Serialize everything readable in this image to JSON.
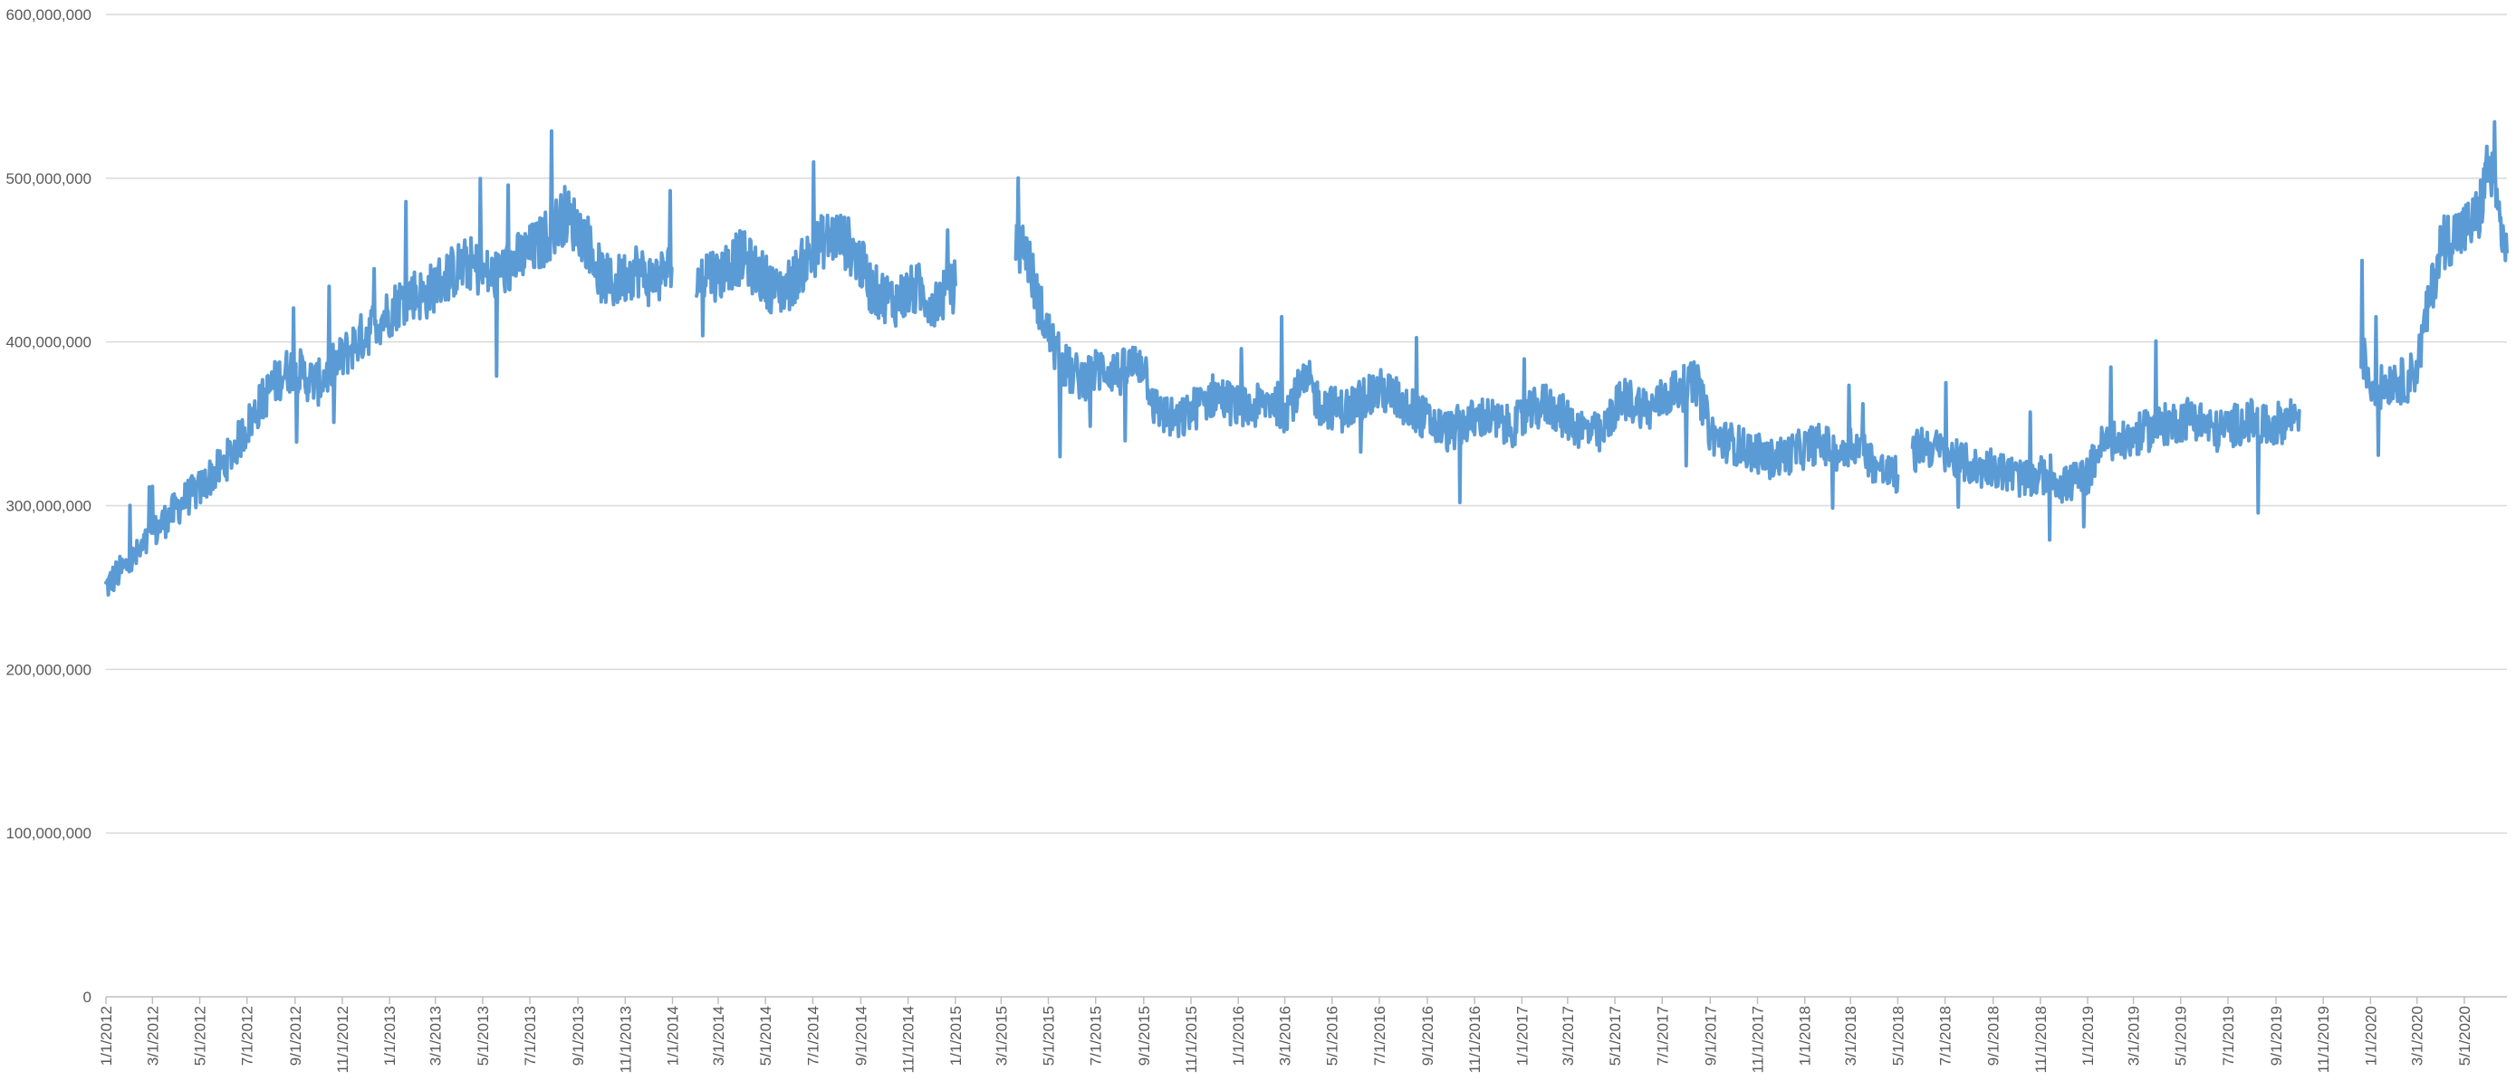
{
  "chart_data": {
    "type": "line",
    "title": "",
    "xlabel": "",
    "ylabel": "",
    "ylim": [
      0,
      600000000
    ],
    "xlim": [
      "2012-01-01",
      "2020-06-25"
    ],
    "grid": "horizontal",
    "legend": "none",
    "line_color": "#5b9bd5",
    "y_ticks": [
      {
        "value": 0,
        "label": "0"
      },
      {
        "value": 100000000,
        "label": "100,000,000"
      },
      {
        "value": 200000000,
        "label": "200,000,000"
      },
      {
        "value": 300000000,
        "label": "300,000,000"
      },
      {
        "value": 400000000,
        "label": "400,000,000"
      },
      {
        "value": 500000000,
        "label": "500,000,000"
      },
      {
        "value": 600000000,
        "label": "600,000,000"
      }
    ],
    "x_ticks": [
      {
        "date": "2012-01-01",
        "label": "1/1/2012"
      },
      {
        "date": "2012-03-01",
        "label": "3/1/2012"
      },
      {
        "date": "2012-05-01",
        "label": "5/1/2012"
      },
      {
        "date": "2012-07-01",
        "label": "7/1/2012"
      },
      {
        "date": "2012-09-01",
        "label": "9/1/2012"
      },
      {
        "date": "2012-11-01",
        "label": "11/1/2012"
      },
      {
        "date": "2013-01-01",
        "label": "1/1/2013"
      },
      {
        "date": "2013-03-01",
        "label": "3/1/2013"
      },
      {
        "date": "2013-05-01",
        "label": "5/1/2013"
      },
      {
        "date": "2013-07-01",
        "label": "7/1/2013"
      },
      {
        "date": "2013-09-01",
        "label": "9/1/2013"
      },
      {
        "date": "2013-11-01",
        "label": "11/1/2013"
      },
      {
        "date": "2014-01-01",
        "label": "1/1/2014"
      },
      {
        "date": "2014-03-01",
        "label": "3/1/2014"
      },
      {
        "date": "2014-05-01",
        "label": "5/1/2014"
      },
      {
        "date": "2014-07-01",
        "label": "7/1/2014"
      },
      {
        "date": "2014-09-01",
        "label": "9/1/2014"
      },
      {
        "date": "2014-11-01",
        "label": "11/1/2014"
      },
      {
        "date": "2015-01-01",
        "label": "1/1/2015"
      },
      {
        "date": "2015-03-01",
        "label": "3/1/2015"
      },
      {
        "date": "2015-05-01",
        "label": "5/1/2015"
      },
      {
        "date": "2015-07-01",
        "label": "7/1/2015"
      },
      {
        "date": "2015-09-01",
        "label": "9/1/2015"
      },
      {
        "date": "2015-11-01",
        "label": "11/1/2015"
      },
      {
        "date": "2016-01-01",
        "label": "1/1/2016"
      },
      {
        "date": "2016-03-01",
        "label": "3/1/2016"
      },
      {
        "date": "2016-05-01",
        "label": "5/1/2016"
      },
      {
        "date": "2016-07-01",
        "label": "7/1/2016"
      },
      {
        "date": "2016-09-01",
        "label": "9/1/2016"
      },
      {
        "date": "2016-11-01",
        "label": "11/1/2016"
      },
      {
        "date": "2017-01-01",
        "label": "1/1/2017"
      },
      {
        "date": "2017-03-01",
        "label": "3/1/2017"
      },
      {
        "date": "2017-05-01",
        "label": "5/1/2017"
      },
      {
        "date": "2017-07-01",
        "label": "7/1/2017"
      },
      {
        "date": "2017-09-01",
        "label": "9/1/2017"
      },
      {
        "date": "2017-11-01",
        "label": "11/1/2017"
      },
      {
        "date": "2018-01-01",
        "label": "1/1/2018"
      },
      {
        "date": "2018-03-01",
        "label": "3/1/2018"
      },
      {
        "date": "2018-05-01",
        "label": "5/1/2018"
      },
      {
        "date": "2018-07-01",
        "label": "7/1/2018"
      },
      {
        "date": "2018-09-01",
        "label": "9/1/2018"
      },
      {
        "date": "2018-11-01",
        "label": "11/1/2018"
      },
      {
        "date": "2019-01-01",
        "label": "1/1/2019"
      },
      {
        "date": "2019-03-01",
        "label": "3/1/2019"
      },
      {
        "date": "2019-05-01",
        "label": "5/1/2019"
      },
      {
        "date": "2019-07-01",
        "label": "7/1/2019"
      },
      {
        "date": "2019-09-01",
        "label": "9/1/2019"
      },
      {
        "date": "2019-11-01",
        "label": "11/1/2019"
      },
      {
        "date": "2020-01-01",
        "label": "1/1/2020"
      },
      {
        "date": "2020-03-01",
        "label": "3/1/2020"
      },
      {
        "date": "2020-05-01",
        "label": "5/1/2020"
      }
    ],
    "series": [
      {
        "segments": [
          {
            "x": [
              "2012-01-01",
              "2012-01-15",
              "2012-02-01",
              "2012-02-15",
              "2012-03-01",
              "2012-03-15",
              "2012-04-01",
              "2012-04-15",
              "2012-05-01",
              "2012-05-15",
              "2012-06-01",
              "2012-06-15",
              "2012-07-01",
              "2012-07-15",
              "2012-08-01",
              "2012-08-15",
              "2012-09-01",
              "2012-09-15",
              "2012-10-01",
              "2012-10-15",
              "2012-11-01",
              "2012-11-15",
              "2012-12-01",
              "2012-12-15",
              "2013-01-01",
              "2013-01-15",
              "2013-02-01",
              "2013-02-15",
              "2013-03-01",
              "2013-03-15",
              "2013-04-01",
              "2013-04-15",
              "2013-05-01",
              "2013-05-15",
              "2013-06-01",
              "2013-06-15",
              "2013-07-01",
              "2013-07-15",
              "2013-08-01",
              "2013-08-15",
              "2013-09-01",
              "2013-09-15",
              "2013-10-01",
              "2013-10-15",
              "2013-11-01",
              "2013-11-15",
              "2013-12-01",
              "2013-12-15",
              "2013-12-31"
            ],
            "y": [
              250000000,
              258000000,
              265000000,
              272000000,
              282000000,
              290000000,
              298000000,
              305000000,
              310000000,
              318000000,
              325000000,
              335000000,
              348000000,
              360000000,
              372000000,
              380000000,
              385000000,
              378000000,
              375000000,
              382000000,
              390000000,
              398000000,
              405000000,
              412000000,
              418000000,
              425000000,
              430000000,
              428000000,
              435000000,
              440000000,
              445000000,
              448000000,
              442000000,
              440000000,
              445000000,
              450000000,
              455000000,
              460000000,
              470000000,
              478000000,
              470000000,
              460000000,
              440000000,
              435000000,
              440000000,
              445000000,
              438000000,
              440000000,
              445000000
            ]
          },
          {
            "x": [
              "2014-02-01",
              "2014-02-15",
              "2014-03-01",
              "2014-03-15",
              "2014-04-01",
              "2014-04-15",
              "2014-05-01",
              "2014-05-15",
              "2014-06-01",
              "2014-06-15",
              "2014-07-01",
              "2014-07-15",
              "2014-08-01",
              "2014-08-15",
              "2014-09-01",
              "2014-09-15",
              "2014-10-01",
              "2014-10-15",
              "2014-11-01",
              "2014-11-15",
              "2014-12-01",
              "2014-12-15",
              "2015-01-01"
            ],
            "y": [
              435000000,
              445000000,
              440000000,
              448000000,
              452000000,
              445000000,
              438000000,
              430000000,
              435000000,
              445000000,
              455000000,
              462000000,
              465000000,
              460000000,
              448000000,
              432000000,
              428000000,
              425000000,
              430000000,
              432000000,
              425000000,
              428000000,
              435000000
            ]
          },
          {
            "x": [
              "2015-03-20",
              "2015-04-01",
              "2015-04-15",
              "2015-05-01",
              "2015-05-15",
              "2015-06-01",
              "2015-06-15",
              "2015-07-01",
              "2015-07-15",
              "2015-08-01",
              "2015-08-15",
              "2015-09-01",
              "2015-09-15",
              "2015-10-01",
              "2015-10-15",
              "2015-11-01",
              "2015-11-15",
              "2015-12-01",
              "2015-12-15",
              "2016-01-01",
              "2016-01-15",
              "2016-02-01",
              "2016-02-15",
              "2016-03-01",
              "2016-03-15",
              "2016-04-01",
              "2016-04-15",
              "2016-05-01",
              "2016-05-15",
              "2016-06-01",
              "2016-06-15",
              "2016-07-01",
              "2016-07-15",
              "2016-08-01",
              "2016-08-15",
              "2016-09-01",
              "2016-09-15",
              "2016-10-01",
              "2016-10-15",
              "2016-11-01",
              "2016-11-15",
              "2016-12-01",
              "2016-12-15",
              "2017-01-01",
              "2017-01-15",
              "2017-02-01",
              "2017-02-15",
              "2017-03-01",
              "2017-03-15",
              "2017-04-01",
              "2017-04-15",
              "2017-05-01",
              "2017-05-15",
              "2017-06-01",
              "2017-06-15",
              "2017-07-01",
              "2017-07-15",
              "2017-08-01",
              "2017-08-15",
              "2017-09-01",
              "2017-09-15",
              "2017-10-01",
              "2017-10-15",
              "2017-11-01",
              "2017-11-15",
              "2017-12-01",
              "2017-12-15",
              "2018-01-01",
              "2018-01-15",
              "2018-02-01",
              "2018-02-15",
              "2018-03-01",
              "2018-03-15",
              "2018-04-01",
              "2018-04-15",
              "2018-05-01"
            ],
            "y": [
              455000000,
              460000000,
              430000000,
              405000000,
              390000000,
              380000000,
              378000000,
              382000000,
              385000000,
              380000000,
              385000000,
              388000000,
              360000000,
              355000000,
              350000000,
              358000000,
              362000000,
              368000000,
              365000000,
              360000000,
              358000000,
              362000000,
              365000000,
              358000000,
              368000000,
              375000000,
              362000000,
              360000000,
              358000000,
              362000000,
              368000000,
              370000000,
              368000000,
              362000000,
              358000000,
              352000000,
              348000000,
              345000000,
              350000000,
              352000000,
              355000000,
              350000000,
              348000000,
              352000000,
              358000000,
              362000000,
              358000000,
              352000000,
              348000000,
              345000000,
              342000000,
              360000000,
              365000000,
              362000000,
              358000000,
              365000000,
              370000000,
              372000000,
              375000000,
              345000000,
              340000000,
              338000000,
              335000000,
              332000000,
              328000000,
              330000000,
              332000000,
              335000000,
              338000000,
              336000000,
              332000000,
              338000000,
              335000000,
              325000000,
              320000000,
              318000000
            ]
          },
          {
            "x": [
              "2018-05-20",
              "2018-06-01",
              "2018-06-15",
              "2018-07-01",
              "2018-07-15",
              "2018-08-01",
              "2018-08-15",
              "2018-09-01",
              "2018-09-15",
              "2018-10-01",
              "2018-10-15",
              "2018-11-01",
              "2018-11-15",
              "2018-12-01",
              "2018-12-15",
              "2019-01-01",
              "2019-01-15",
              "2019-02-01",
              "2019-02-15",
              "2019-03-01",
              "2019-03-15",
              "2019-04-01",
              "2019-04-15",
              "2019-05-01",
              "2019-05-15",
              "2019-06-01",
              "2019-06-15",
              "2019-07-01",
              "2019-07-15",
              "2019-08-01",
              "2019-08-15",
              "2019-09-01",
              "2019-09-15",
              "2019-10-01"
            ],
            "y": [
              330000000,
              338000000,
              335000000,
              332000000,
              328000000,
              325000000,
              322000000,
              325000000,
              320000000,
              318000000,
              315000000,
              318000000,
              320000000,
              312000000,
              315000000,
              318000000,
              335000000,
              340000000,
              338000000,
              342000000,
              345000000,
              348000000,
              350000000,
              352000000,
              355000000,
              350000000,
              345000000,
              348000000,
              350000000,
              352000000,
              348000000,
              350000000,
              352000000,
              358000000
            ]
          },
          {
            "x": [
              "2019-12-20",
              "2020-01-01",
              "2020-01-15",
              "2020-02-01",
              "2020-02-15",
              "2020-03-01",
              "2020-03-15",
              "2020-04-01",
              "2020-04-15",
              "2020-05-01",
              "2020-05-10",
              "2020-05-20",
              "2020-06-01",
              "2020-06-15",
              "2020-06-25"
            ],
            "y": [
              395000000,
              375000000,
              372000000,
              378000000,
              375000000,
              385000000,
              420000000,
              460000000,
              465000000,
              468000000,
              472000000,
              478000000,
              510000000,
              475000000,
              455000000
            ]
          }
        ]
      }
    ]
  }
}
